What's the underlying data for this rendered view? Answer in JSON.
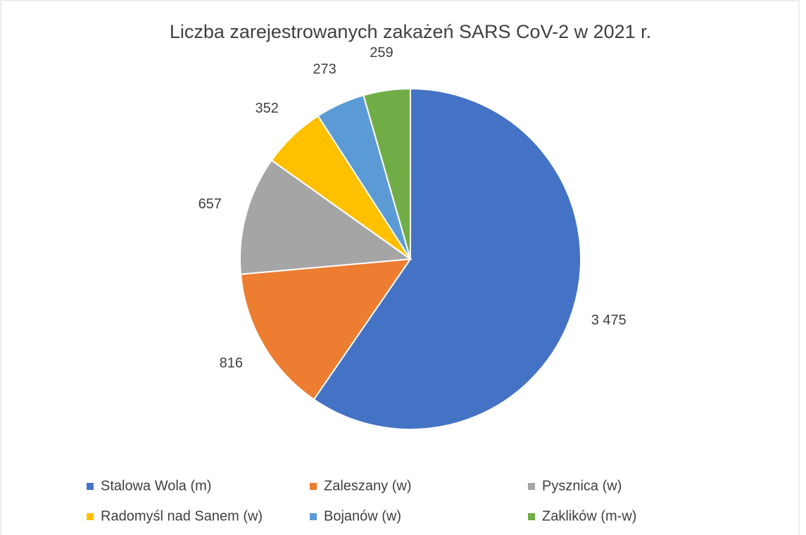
{
  "chart_data": {
    "type": "pie",
    "title": "Liczba zarejestrowanych zakażeń SARS CoV-2 w 2021 r.",
    "categories": [
      "Stalowa Wola (m)",
      "Zaleszany (w)",
      "Pysznica (w)",
      "Radomyśl nad Sanem (w)",
      "Bojanów (w)",
      "Zaklików (m-w)"
    ],
    "values": [
      3475,
      816,
      657,
      352,
      273,
      259
    ],
    "value_labels": [
      "3 475",
      "816",
      "657",
      "352",
      "273",
      "259"
    ],
    "colors": [
      "#4472c4",
      "#ed7d31",
      "#a5a5a5",
      "#ffc000",
      "#5b9bd5",
      "#70ad47"
    ],
    "legend": "bottom"
  }
}
